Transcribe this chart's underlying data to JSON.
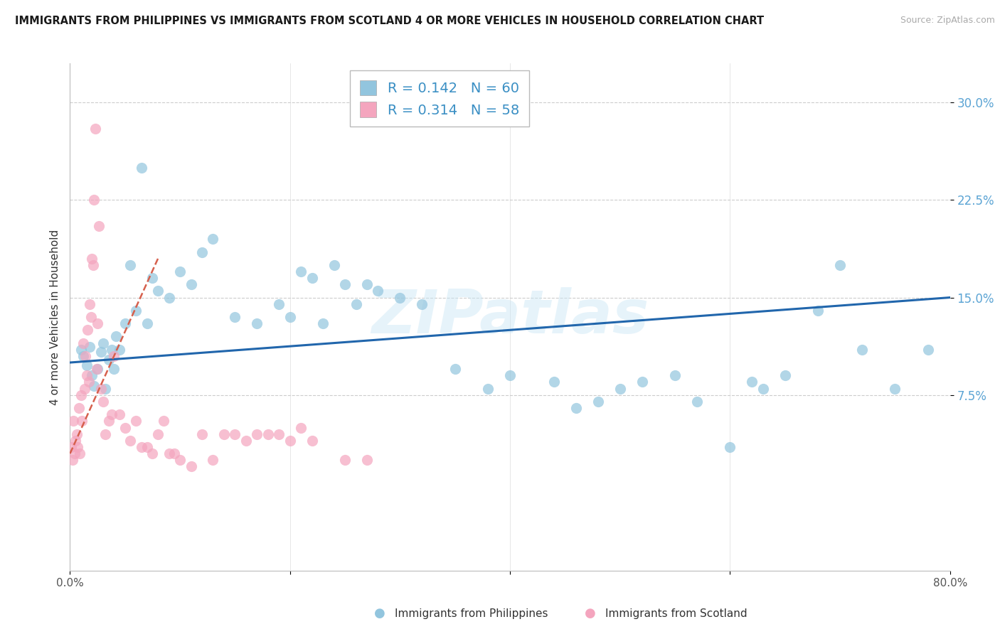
{
  "title": "IMMIGRANTS FROM PHILIPPINES VS IMMIGRANTS FROM SCOTLAND 4 OR MORE VEHICLES IN HOUSEHOLD CORRELATION CHART",
  "source": "Source: ZipAtlas.com",
  "ylabel": "4 or more Vehicles in Household",
  "legend_labels": [
    "Immigrants from Philippines",
    "Immigrants from Scotland"
  ],
  "legend_r_vals": [
    "0.142",
    "0.314"
  ],
  "legend_n_vals": [
    "60",
    "58"
  ],
  "blue_color": "#92c5de",
  "pink_color": "#f4a5be",
  "blue_line_color": "#2166ac",
  "pink_line_color": "#d6604d",
  "xlim": [
    0.0,
    80.0
  ],
  "ylim": [
    -6.0,
    33.0
  ],
  "yticks": [
    7.5,
    15.0,
    22.5,
    30.0
  ],
  "ytick_labels": [
    "7.5%",
    "15.0%",
    "22.5%",
    "30.0%"
  ],
  "xticks": [
    0,
    20,
    40,
    60,
    80
  ],
  "xtick_labels": [
    "0.0%",
    "",
    "",
    "",
    "80.0%"
  ],
  "watermark": "ZIPatlas",
  "blue_x": [
    1.0,
    1.2,
    1.5,
    1.8,
    2.0,
    2.2,
    2.5,
    2.8,
    3.0,
    3.2,
    3.5,
    3.8,
    4.0,
    4.2,
    4.5,
    5.0,
    5.5,
    6.0,
    6.5,
    7.0,
    7.5,
    8.0,
    9.0,
    10.0,
    11.0,
    12.0,
    13.0,
    15.0,
    17.0,
    19.0,
    20.0,
    21.0,
    22.0,
    23.0,
    24.0,
    25.0,
    26.0,
    27.0,
    28.0,
    30.0,
    32.0,
    35.0,
    38.0,
    40.0,
    44.0,
    46.0,
    48.0,
    50.0,
    52.0,
    55.0,
    57.0,
    60.0,
    62.0,
    63.0,
    65.0,
    68.0,
    70.0,
    72.0,
    75.0,
    78.0
  ],
  "blue_y": [
    11.0,
    10.5,
    9.8,
    11.2,
    9.0,
    8.2,
    9.5,
    10.8,
    11.5,
    8.0,
    10.2,
    11.0,
    9.5,
    12.0,
    11.0,
    13.0,
    17.5,
    14.0,
    25.0,
    13.0,
    16.5,
    15.5,
    15.0,
    17.0,
    16.0,
    18.5,
    19.5,
    13.5,
    13.0,
    14.5,
    13.5,
    17.0,
    16.5,
    13.0,
    17.5,
    16.0,
    14.5,
    16.0,
    15.5,
    15.0,
    14.5,
    9.5,
    8.0,
    9.0,
    8.5,
    6.5,
    7.0,
    8.0,
    8.5,
    9.0,
    7.0,
    3.5,
    8.5,
    8.0,
    9.0,
    14.0,
    17.5,
    11.0,
    8.0,
    11.0
  ],
  "pink_x": [
    0.1,
    0.2,
    0.3,
    0.4,
    0.5,
    0.6,
    0.7,
    0.8,
    0.9,
    1.0,
    1.1,
    1.2,
    1.3,
    1.4,
    1.5,
    1.6,
    1.7,
    1.8,
    1.9,
    2.0,
    2.1,
    2.2,
    2.3,
    2.4,
    2.5,
    2.6,
    2.8,
    3.0,
    3.2,
    3.5,
    3.8,
    4.0,
    4.5,
    5.0,
    5.5,
    6.0,
    6.5,
    7.0,
    7.5,
    8.0,
    8.5,
    9.0,
    9.5,
    10.0,
    11.0,
    12.0,
    13.0,
    14.0,
    15.0,
    16.0,
    17.0,
    18.0,
    19.0,
    20.0,
    21.0,
    22.0,
    25.0,
    27.0
  ],
  "pink_y": [
    3.5,
    2.5,
    5.5,
    3.0,
    4.0,
    4.5,
    3.5,
    6.5,
    3.0,
    7.5,
    5.5,
    11.5,
    8.0,
    10.5,
    9.0,
    12.5,
    8.5,
    14.5,
    13.5,
    18.0,
    17.5,
    22.5,
    28.0,
    9.5,
    13.0,
    20.5,
    8.0,
    7.0,
    4.5,
    5.5,
    6.0,
    10.5,
    6.0,
    5.0,
    4.0,
    5.5,
    3.5,
    3.5,
    3.0,
    4.5,
    5.5,
    3.0,
    3.0,
    2.5,
    2.0,
    4.5,
    2.5,
    4.5,
    4.5,
    4.0,
    4.5,
    4.5,
    4.5,
    4.0,
    5.0,
    4.0,
    2.5,
    2.5
  ],
  "blue_trend_x0": 0.0,
  "blue_trend_y0": 10.0,
  "blue_trend_x1": 80.0,
  "blue_trend_y1": 15.0,
  "pink_trend_x0": 0.0,
  "pink_trend_y0": 3.0,
  "pink_trend_x1": 8.0,
  "pink_trend_y1": 18.0
}
